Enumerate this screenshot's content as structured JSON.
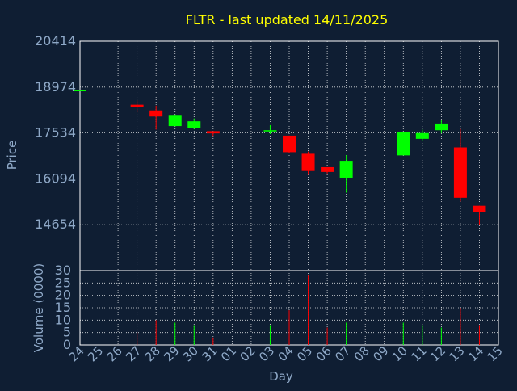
{
  "chart_data": {
    "type": "candlestick",
    "title": "FLTR - last updated 14/11/2025",
    "price_axis": {
      "label": "Price",
      "ticks": [
        14654,
        16094,
        17534,
        18974,
        20414
      ],
      "range": [
        13214,
        20414
      ]
    },
    "volume_axis": {
      "label": "Volume (0000)",
      "ticks": [
        0,
        5,
        10,
        15,
        20,
        25,
        30
      ],
      "range": [
        0,
        30
      ]
    },
    "x_axis": {
      "label": "Day",
      "ticks": [
        "24",
        "25",
        "26",
        "27",
        "28",
        "29",
        "30",
        "31",
        "01",
        "02",
        "03",
        "04",
        "05",
        "06",
        "07",
        "08",
        "09",
        "10",
        "11",
        "12",
        "13",
        "14",
        "15"
      ]
    },
    "grid": true,
    "colors": {
      "up": "#00ff00",
      "down": "#ff0000",
      "background": "#0f1e33",
      "title": "#ffff00",
      "axis_text": "#8fa9c8"
    },
    "candles": [
      {
        "day": "24",
        "open": 18880,
        "high": 18880,
        "low": 18880,
        "close": 18880,
        "volume": 0
      },
      {
        "day": "27",
        "open": 18420,
        "high": 18560,
        "low": 18180,
        "close": 18340,
        "volume": 5
      },
      {
        "day": "28",
        "open": 18240,
        "high": 18390,
        "low": 17640,
        "close": 18050,
        "volume": 10
      },
      {
        "day": "29",
        "open": 17750,
        "high": 18110,
        "low": 17740,
        "close": 18100,
        "volume": 9
      },
      {
        "day": "30",
        "open": 17680,
        "high": 17990,
        "low": 17660,
        "close": 17900,
        "volume": 8
      },
      {
        "day": "31",
        "open": 17590,
        "high": 17590,
        "low": 17440,
        "close": 17520,
        "volume": 3
      },
      {
        "day": "03",
        "open": 17580,
        "high": 17780,
        "low": 17500,
        "close": 17620,
        "volume": 8
      },
      {
        "day": "04",
        "open": 17450,
        "high": 17450,
        "low": 16900,
        "close": 16930,
        "volume": 14
      },
      {
        "day": "05",
        "open": 16880,
        "high": 16950,
        "low": 16220,
        "close": 16340,
        "volume": 28
      },
      {
        "day": "06",
        "open": 16460,
        "high": 16460,
        "low": 16260,
        "close": 16310,
        "volume": 7
      },
      {
        "day": "07",
        "open": 16130,
        "high": 16840,
        "low": 15660,
        "close": 16660,
        "volume": 9
      },
      {
        "day": "10",
        "open": 16830,
        "high": 17570,
        "low": 16830,
        "close": 17560,
        "volume": 9
      },
      {
        "day": "11",
        "open": 17350,
        "high": 17640,
        "low": 17300,
        "close": 17530,
        "volume": 8
      },
      {
        "day": "12",
        "open": 17620,
        "high": 17940,
        "low": 17520,
        "close": 17830,
        "volume": 7
      },
      {
        "day": "13",
        "open": 17080,
        "high": 17660,
        "low": 15380,
        "close": 15500,
        "volume": 15
      },
      {
        "day": "14",
        "open": 15250,
        "high": 15250,
        "low": 14660,
        "close": 15050,
        "volume": 8
      }
    ]
  }
}
